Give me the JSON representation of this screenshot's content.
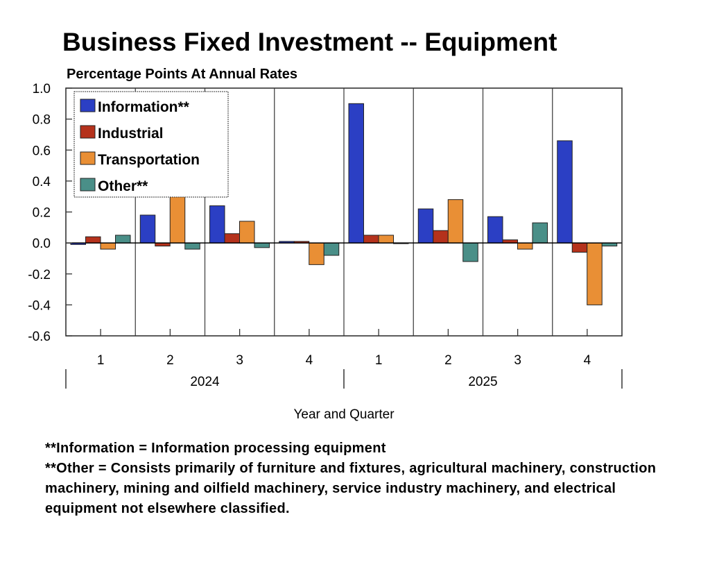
{
  "chart_data": {
    "type": "bar",
    "title": "Business Fixed Investment -- Equipment",
    "subtitle": "Percentage Points At Annual Rates",
    "xlabel": "Year and Quarter",
    "ylabel": "",
    "ylim": [
      -0.6,
      1.0
    ],
    "yticks": [
      "1.0",
      "0.8",
      "0.6",
      "0.4",
      "0.2",
      "0.0",
      "-0.2",
      "-0.4",
      "-0.6"
    ],
    "ytick_values": [
      1.0,
      0.8,
      0.6,
      0.4,
      0.2,
      0.0,
      -0.2,
      -0.4,
      -0.6
    ],
    "categories": [
      "1",
      "2",
      "3",
      "4",
      "1",
      "2",
      "3",
      "4"
    ],
    "years": [
      "2024",
      "2025"
    ],
    "grid": "vertical separators between quarters",
    "legend_position": "top-left",
    "series": [
      {
        "name": "Information**",
        "color": "#2b3fc4",
        "values": [
          -0.01,
          0.18,
          0.24,
          0.01,
          0.9,
          0.22,
          0.17,
          0.66
        ]
      },
      {
        "name": "Industrial",
        "color": "#b5321c",
        "values": [
          0.04,
          -0.02,
          0.06,
          0.01,
          0.05,
          0.08,
          0.02,
          -0.06
        ]
      },
      {
        "name": "Transportation",
        "color": "#e98f35",
        "values": [
          -0.04,
          0.38,
          0.14,
          -0.14,
          0.05,
          0.28,
          -0.04,
          -0.4
        ]
      },
      {
        "name": "Other**",
        "color": "#4a8f88",
        "values": [
          0.05,
          -0.04,
          -0.03,
          -0.08,
          0.0,
          -0.12,
          0.13,
          -0.02
        ]
      }
    ]
  },
  "notes": [
    "**Information =  Information processing equipment",
    "**Other = Consists primarily of furniture and fixtures, agricultural machinery, construction machinery, mining and oilfield machinery, service industry machinery, and electrical equipment not elsewhere classified."
  ]
}
